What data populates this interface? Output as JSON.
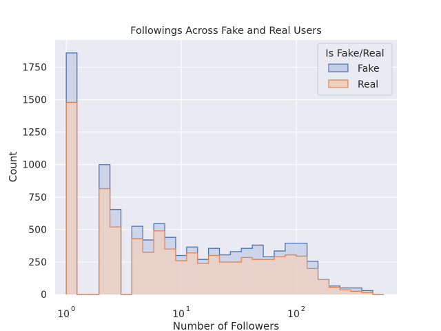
{
  "chart_data": {
    "type": "histogram",
    "title": "Followings Across Fake and Real Users",
    "xlabel": "Number of Followers",
    "ylabel": "Count",
    "xscale": "log",
    "xlim": [
      0.8,
      750
    ],
    "ylim": [
      0,
      1960
    ],
    "xticks": [
      {
        "value": 1,
        "base": "10",
        "exp": "0"
      },
      {
        "value": 10,
        "base": "10",
        "exp": "1"
      },
      {
        "value": 100,
        "base": "10",
        "exp": "2"
      }
    ],
    "yticks": [
      0,
      250,
      500,
      750,
      1000,
      1250,
      1500,
      1750
    ],
    "grid": true,
    "legend": {
      "title": "Is Fake/Real",
      "position": "top-right"
    },
    "bin_edges": [
      1.0,
      1.24,
      1.55,
      1.93,
      2.4,
      2.99,
      3.72,
      4.63,
      5.77,
      7.18,
      8.94,
      11.13,
      13.86,
      17.26,
      21.49,
      26.75,
      33.31,
      41.47,
      51.64,
      64.3,
      80.06,
      99.69,
      124.13,
      154.56,
      192.45,
      239.63,
      298.38,
      371.53,
      462.62,
      576.0
    ],
    "series": [
      {
        "name": "Fake",
        "color": "#4c72b0",
        "fill": "#c4cee6",
        "values": [
          1860,
          0,
          0,
          1000,
          655,
          0,
          525,
          420,
          545,
          440,
          300,
          365,
          270,
          355,
          305,
          330,
          355,
          380,
          290,
          335,
          395,
          395,
          255,
          115,
          65,
          50,
          50,
          30,
          0
        ]
      },
      {
        "name": "Real",
        "color": "#dd8452",
        "fill": "#efcfbd",
        "values": [
          1480,
          0,
          0,
          815,
          520,
          0,
          430,
          325,
          490,
          350,
          260,
          320,
          240,
          300,
          250,
          250,
          285,
          270,
          270,
          290,
          305,
          295,
          200,
          115,
          55,
          35,
          25,
          15,
          0
        ]
      }
    ]
  }
}
